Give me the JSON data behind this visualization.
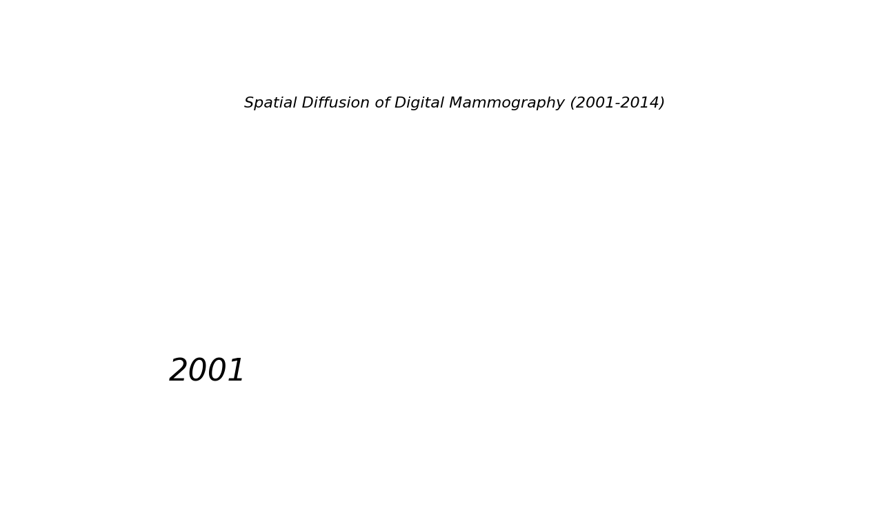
{
  "title": "Spatial Diffusion of Digital Mammography (2001-2014)",
  "year_label": "2001",
  "title_fontsize": 16,
  "year_fontsize": 32,
  "bg_color": "#ffffff",
  "orange_color": "#FF8C00",
  "green_color": "#2ECC9A",
  "gray_color": "#C8C8C8",
  "cross_color": "#8B4513",
  "map_bounds": [
    -125,
    -66,
    24,
    50
  ],
  "seed_orange": 42,
  "seed_green": 123,
  "seed_gray": 777,
  "seed_cross": 999
}
